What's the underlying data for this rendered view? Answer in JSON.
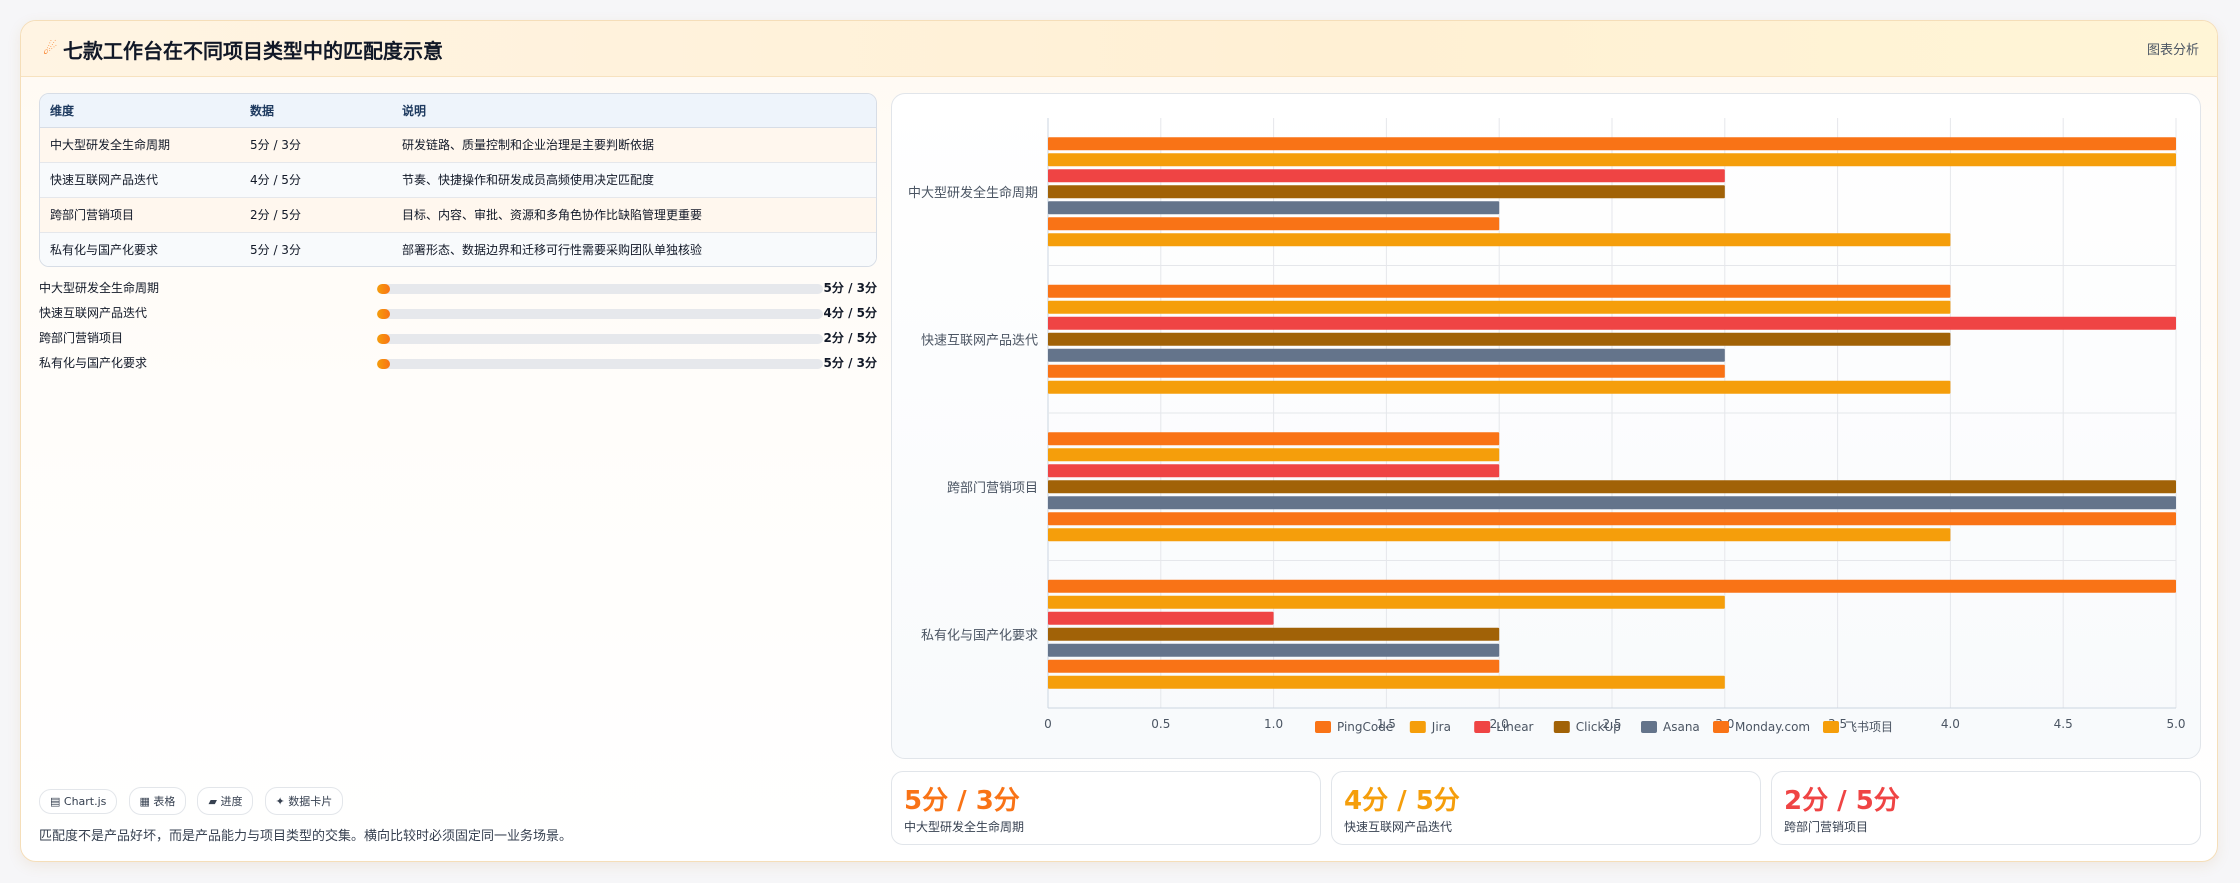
{
  "header": {
    "title": "七款工作台在不同项目类型中的匹配度示意",
    "right_label": "图表分析",
    "icon": "comet-icon"
  },
  "table": {
    "headers": [
      "维度",
      "数据",
      "说明"
    ],
    "rows": [
      [
        "中大型研发全生命周期",
        "5分 / 3分",
        "研发链路、质量控制和企业治理是主要判断依据"
      ],
      [
        "快速互联网产品迭代",
        "4分 / 5分",
        "节奏、快捷操作和研发成员高频使用决定匹配度"
      ],
      [
        "跨部门营销项目",
        "2分 / 5分",
        "目标、内容、审批、资源和多角色协作比缺陷管理更重要"
      ],
      [
        "私有化与国产化要求",
        "5分 / 3分",
        "部署形态、数据边界和迁移可行性需要采购团队单独核验"
      ]
    ]
  },
  "progress": [
    {
      "label": "中大型研发全生命周期",
      "value_text": "5分 / 3分",
      "fraction": 0.03
    },
    {
      "label": "快速互联网产品迭代",
      "value_text": "4分 / 5分",
      "fraction": 0.03
    },
    {
      "label": "跨部门营销项目",
      "value_text": "2分 / 5分",
      "fraction": 0.03
    },
    {
      "label": "私有化与国产化要求",
      "value_text": "5分 / 3分",
      "fraction": 0.03
    }
  ],
  "chips": [
    "▤ Chart.js",
    "▦ 表格",
    "▰ 进度",
    "✦ 数据卡片"
  ],
  "footnote": "匹配度不是产品好坏，而是产品能力与项目类型的交集。横向比较时必须固定同一业务场景。",
  "stats": [
    {
      "value": "5分 / 3分",
      "label": "中大型研发全生命周期",
      "color": "#f97316"
    },
    {
      "value": "4分 / 5分",
      "label": "快速互联网产品迭代",
      "color": "#f59e0b"
    },
    {
      "value": "2分 / 5分",
      "label": "跨部门营销项目",
      "color": "#ef4444"
    }
  ],
  "chart_data": {
    "type": "bar",
    "orientation": "horizontal",
    "categories": [
      "中大型研发全生命周期",
      "快速互联网产品迭代",
      "跨部门营销项目",
      "私有化与国产化要求"
    ],
    "series": [
      {
        "name": "PingCode",
        "color": "#f97316",
        "values": [
          5,
          4,
          2,
          5
        ]
      },
      {
        "name": "Jira",
        "color": "#f59e0b",
        "values": [
          5,
          4,
          2,
          3
        ]
      },
      {
        "name": "Linear",
        "color": "#ef4444",
        "values": [
          3,
          5,
          2,
          1
        ]
      },
      {
        "name": "ClickUp",
        "color": "#a16207",
        "values": [
          3,
          4,
          5,
          2
        ]
      },
      {
        "name": "Asana",
        "color": "#64748b",
        "values": [
          2,
          3,
          5,
          2
        ]
      },
      {
        "name": "Monday.com",
        "color": "#f97316",
        "values": [
          2,
          3,
          5,
          2
        ]
      },
      {
        "name": "飞书项目",
        "color": "#f59e0b",
        "values": [
          4,
          4,
          4,
          3
        ]
      }
    ],
    "xlim": [
      0,
      5
    ],
    "xticks": [
      "0",
      "0.5",
      "1.0",
      "1.5",
      "2.0",
      "2.5",
      "3.0",
      "3.5",
      "4.0",
      "4.5",
      "5.0"
    ],
    "grid": true,
    "legend_position": "bottom"
  }
}
